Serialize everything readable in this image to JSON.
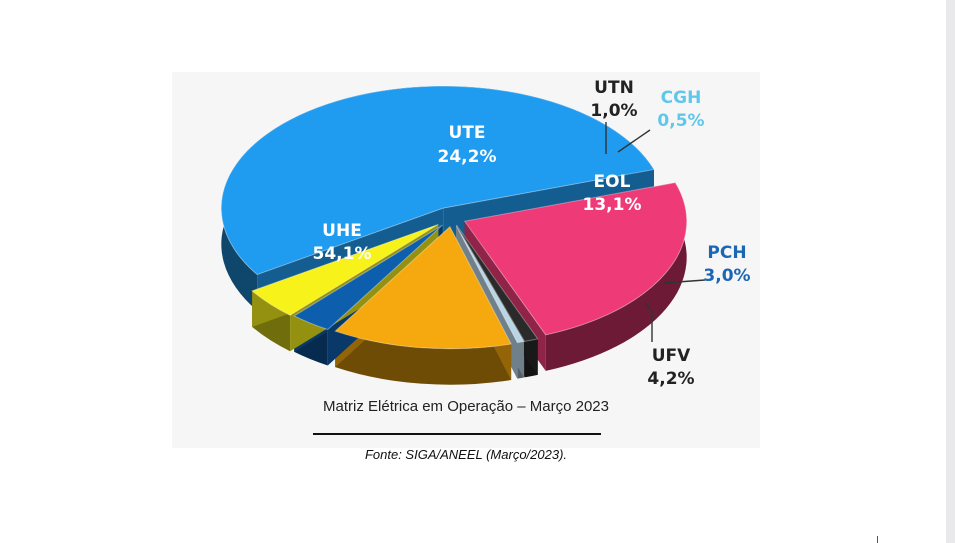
{
  "chart_data": {
    "type": "pie",
    "categories": [
      "UHE",
      "UTE",
      "UTN",
      "CGH",
      "EOL",
      "PCH",
      "UFV"
    ],
    "values": [
      54.1,
      24.2,
      1.0,
      0.5,
      13.1,
      3.0,
      4.2
    ],
    "value_labels": [
      "54,1%",
      "24,2%",
      "1,0%",
      "0,5%",
      "13,1%",
      "3,0%",
      "4,2%"
    ],
    "colors": [
      "#1f9bf0",
      "#ef3a78",
      "#2a2a2a",
      "#b9d6e6",
      "#f5a90e",
      "#0d5fae",
      "#f7f21a"
    ],
    "style": "3d-exploded",
    "legend": "none"
  },
  "caption": "Matriz Elétrica em Operação – Março 2023",
  "source": "Fonte: SIGA/ANEEL (Março/2023)."
}
